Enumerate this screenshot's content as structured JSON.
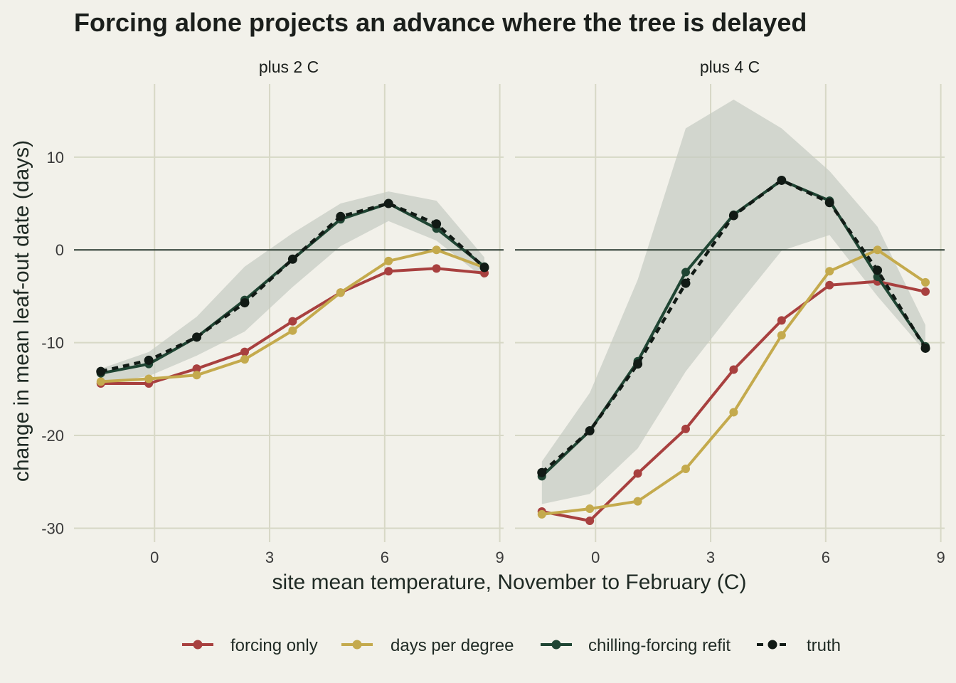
{
  "chart_data": {
    "type": "line",
    "title": "Forcing alone projects an advance where the tree is delayed",
    "xlabel": "site mean temperature, November to February (C)",
    "ylabel": "change in mean leaf-out date (days)",
    "xlim": [
      -2.1,
      9.1
    ],
    "ylim": [
      -31.5,
      18.5
    ],
    "x_ticks": [
      "0",
      "3",
      "6",
      "9"
    ],
    "x_tick_values": [
      0,
      3,
      6,
      9
    ],
    "y_ticks": [
      "-30",
      "-20",
      "-10",
      "0",
      "10"
    ],
    "y_tick_values": [
      -30,
      -20,
      -10,
      0,
      10
    ],
    "grid": true,
    "zero_line": true,
    "legend_position": "bottom",
    "colors": {
      "forcing only": "#a8403f",
      "days per degree": "#c4aa4d",
      "chilling-forcing refit": "#1f4533",
      "truth": "#111a15",
      "band": "#c5cbc2"
    },
    "legend": [
      "forcing only",
      "days per degree",
      "chilling-forcing refit",
      "truth"
    ],
    "panels": [
      {
        "label": "plus 2 C",
        "x": [
          -1.4,
          -0.15,
          1.1,
          2.35,
          3.6,
          4.85,
          6.1,
          7.35,
          8.6
        ],
        "band_upper": [
          -12.8,
          -11.0,
          -7.2,
          -1.8,
          1.8,
          5.0,
          6.3,
          5.3,
          -0.8
        ],
        "band_lower": [
          -14.4,
          -13.6,
          -11.4,
          -8.8,
          -4.0,
          0.4,
          3.1,
          1.0,
          -3.1
        ],
        "series": [
          {
            "name": "forcing only",
            "values": [
              -14.4,
              -14.4,
              -12.8,
              -11.0,
              -7.7,
              -4.6,
              -2.3,
              -2.0,
              -2.5
            ]
          },
          {
            "name": "days per degree",
            "values": [
              -14.2,
              -13.9,
              -13.5,
              -11.8,
              -8.7,
              -4.6,
              -1.2,
              0.0,
              -1.9
            ]
          },
          {
            "name": "chilling-forcing refit",
            "values": [
              -13.3,
              -12.3,
              -9.4,
              -5.4,
              -1.0,
              3.3,
              5.0,
              2.3,
              -1.8
            ]
          },
          {
            "name": "truth",
            "values": [
              -13.1,
              -11.9,
              -9.4,
              -5.7,
              -1.0,
              3.6,
              5.0,
              2.8,
              -1.9
            ]
          }
        ]
      },
      {
        "label": "plus 4 C",
        "x": [
          -1.4,
          -0.15,
          1.1,
          2.35,
          3.6,
          4.85,
          6.1,
          7.35,
          8.6
        ],
        "band_upper": [
          -22.8,
          -15.4,
          -3.2,
          13.1,
          16.2,
          13.1,
          8.5,
          2.5,
          -8.1
        ],
        "band_lower": [
          -27.4,
          -26.3,
          -21.4,
          -13.1,
          -6.5,
          -0.1,
          1.6,
          -5.0,
          -11.0
        ],
        "series": [
          {
            "name": "forcing only",
            "values": [
              -28.2,
              -29.2,
              -24.1,
              -19.3,
              -12.9,
              -7.6,
              -3.8,
              -3.4,
              -4.5
            ]
          },
          {
            "name": "days per degree",
            "values": [
              -28.5,
              -27.9,
              -27.1,
              -23.6,
              -17.5,
              -9.2,
              -2.3,
              0.0,
              -3.5
            ]
          },
          {
            "name": "chilling-forcing refit",
            "values": [
              -24.4,
              -19.5,
              -12.0,
              -2.4,
              3.8,
              7.5,
              5.3,
              -2.9,
              -10.4
            ]
          },
          {
            "name": "truth",
            "values": [
              -24.0,
              -19.5,
              -12.3,
              -3.6,
              3.7,
              7.5,
              5.1,
              -2.2,
              -10.6
            ]
          }
        ]
      }
    ]
  }
}
